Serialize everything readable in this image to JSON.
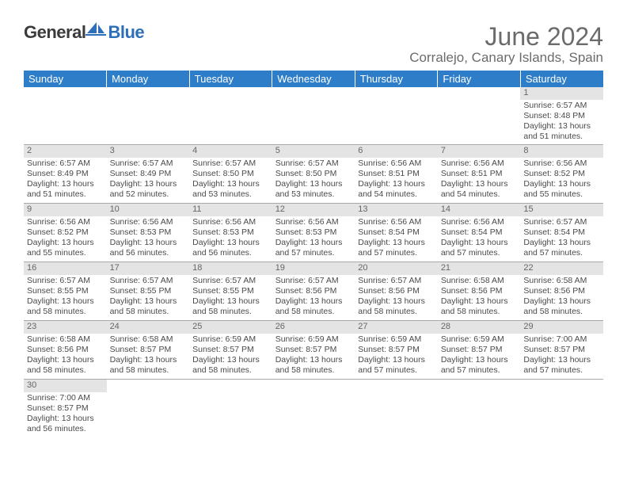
{
  "logo": {
    "part1": "General",
    "part2": "Blue"
  },
  "title": "June 2024",
  "location": "Corralejo, Canary Islands, Spain",
  "colors": {
    "header_bg": "#2d7dc9",
    "header_fg": "#ffffff",
    "daynum_bg": "#e4e4e4",
    "text": "#4a4a4a",
    "title": "#6b6b6b"
  },
  "weekdays": [
    "Sunday",
    "Monday",
    "Tuesday",
    "Wednesday",
    "Thursday",
    "Friday",
    "Saturday"
  ],
  "weeks": [
    [
      null,
      null,
      null,
      null,
      null,
      null,
      {
        "n": "1",
        "sr": "6:57 AM",
        "ss": "8:48 PM",
        "dl": "13 hours and 51 minutes."
      }
    ],
    [
      {
        "n": "2",
        "sr": "6:57 AM",
        "ss": "8:49 PM",
        "dl": "13 hours and 51 minutes."
      },
      {
        "n": "3",
        "sr": "6:57 AM",
        "ss": "8:49 PM",
        "dl": "13 hours and 52 minutes."
      },
      {
        "n": "4",
        "sr": "6:57 AM",
        "ss": "8:50 PM",
        "dl": "13 hours and 53 minutes."
      },
      {
        "n": "5",
        "sr": "6:57 AM",
        "ss": "8:50 PM",
        "dl": "13 hours and 53 minutes."
      },
      {
        "n": "6",
        "sr": "6:56 AM",
        "ss": "8:51 PM",
        "dl": "13 hours and 54 minutes."
      },
      {
        "n": "7",
        "sr": "6:56 AM",
        "ss": "8:51 PM",
        "dl": "13 hours and 54 minutes."
      },
      {
        "n": "8",
        "sr": "6:56 AM",
        "ss": "8:52 PM",
        "dl": "13 hours and 55 minutes."
      }
    ],
    [
      {
        "n": "9",
        "sr": "6:56 AM",
        "ss": "8:52 PM",
        "dl": "13 hours and 55 minutes."
      },
      {
        "n": "10",
        "sr": "6:56 AM",
        "ss": "8:53 PM",
        "dl": "13 hours and 56 minutes."
      },
      {
        "n": "11",
        "sr": "6:56 AM",
        "ss": "8:53 PM",
        "dl": "13 hours and 56 minutes."
      },
      {
        "n": "12",
        "sr": "6:56 AM",
        "ss": "8:53 PM",
        "dl": "13 hours and 57 minutes."
      },
      {
        "n": "13",
        "sr": "6:56 AM",
        "ss": "8:54 PM",
        "dl": "13 hours and 57 minutes."
      },
      {
        "n": "14",
        "sr": "6:56 AM",
        "ss": "8:54 PM",
        "dl": "13 hours and 57 minutes."
      },
      {
        "n": "15",
        "sr": "6:57 AM",
        "ss": "8:54 PM",
        "dl": "13 hours and 57 minutes."
      }
    ],
    [
      {
        "n": "16",
        "sr": "6:57 AM",
        "ss": "8:55 PM",
        "dl": "13 hours and 58 minutes."
      },
      {
        "n": "17",
        "sr": "6:57 AM",
        "ss": "8:55 PM",
        "dl": "13 hours and 58 minutes."
      },
      {
        "n": "18",
        "sr": "6:57 AM",
        "ss": "8:55 PM",
        "dl": "13 hours and 58 minutes."
      },
      {
        "n": "19",
        "sr": "6:57 AM",
        "ss": "8:56 PM",
        "dl": "13 hours and 58 minutes."
      },
      {
        "n": "20",
        "sr": "6:57 AM",
        "ss": "8:56 PM",
        "dl": "13 hours and 58 minutes."
      },
      {
        "n": "21",
        "sr": "6:58 AM",
        "ss": "8:56 PM",
        "dl": "13 hours and 58 minutes."
      },
      {
        "n": "22",
        "sr": "6:58 AM",
        "ss": "8:56 PM",
        "dl": "13 hours and 58 minutes."
      }
    ],
    [
      {
        "n": "23",
        "sr": "6:58 AM",
        "ss": "8:56 PM",
        "dl": "13 hours and 58 minutes."
      },
      {
        "n": "24",
        "sr": "6:58 AM",
        "ss": "8:57 PM",
        "dl": "13 hours and 58 minutes."
      },
      {
        "n": "25",
        "sr": "6:59 AM",
        "ss": "8:57 PM",
        "dl": "13 hours and 58 minutes."
      },
      {
        "n": "26",
        "sr": "6:59 AM",
        "ss": "8:57 PM",
        "dl": "13 hours and 58 minutes."
      },
      {
        "n": "27",
        "sr": "6:59 AM",
        "ss": "8:57 PM",
        "dl": "13 hours and 57 minutes."
      },
      {
        "n": "28",
        "sr": "6:59 AM",
        "ss": "8:57 PM",
        "dl": "13 hours and 57 minutes."
      },
      {
        "n": "29",
        "sr": "7:00 AM",
        "ss": "8:57 PM",
        "dl": "13 hours and 57 minutes."
      }
    ],
    [
      {
        "n": "30",
        "sr": "7:00 AM",
        "ss": "8:57 PM",
        "dl": "13 hours and 56 minutes."
      },
      null,
      null,
      null,
      null,
      null,
      null
    ]
  ],
  "labels": {
    "sunrise": "Sunrise:",
    "sunset": "Sunset:",
    "daylight": "Daylight:"
  }
}
